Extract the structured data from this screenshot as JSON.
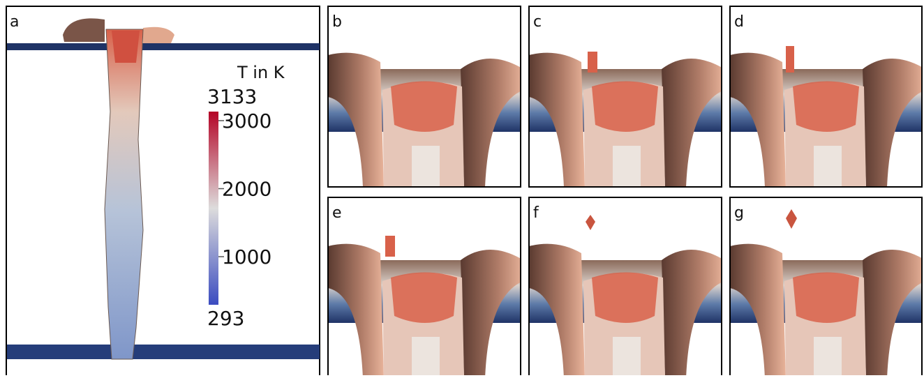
{
  "panels": [
    "a",
    "b",
    "c",
    "d",
    "e",
    "f",
    "g"
  ],
  "colorbar": {
    "title": "T in K",
    "range": [
      293,
      3133
    ],
    "ticks": [
      1000,
      2000,
      3000
    ]
  }
}
